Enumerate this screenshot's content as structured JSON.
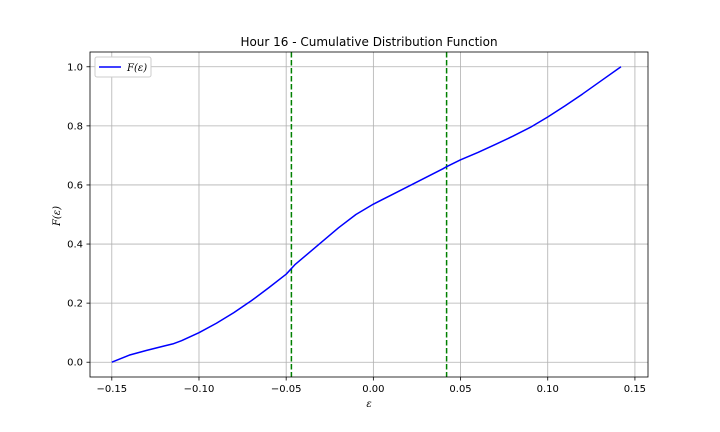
{
  "chart_data": {
    "type": "line",
    "title": "Hour 16 - Cumulative Distribution Function",
    "xlabel": "ε",
    "ylabel": "F(ε)",
    "xlim": [
      -0.1625,
      0.1575
    ],
    "ylim": [
      -0.05,
      1.05
    ],
    "xticks": [
      -0.15,
      -0.1,
      -0.05,
      0.0,
      0.05,
      0.1,
      0.15
    ],
    "xtick_labels": [
      "−0.15",
      "−0.10",
      "−0.05",
      "0.00",
      "0.05",
      "0.10",
      "0.15"
    ],
    "yticks": [
      0.0,
      0.2,
      0.4,
      0.6,
      0.8,
      1.0
    ],
    "ytick_labels": [
      "0.0",
      "0.2",
      "0.4",
      "0.6",
      "0.8",
      "1.0"
    ],
    "grid": true,
    "legend_position": "top-left",
    "series": [
      {
        "name": "F(ε)",
        "color": "#0000ff",
        "x": [
          -0.15,
          -0.145,
          -0.14,
          -0.13,
          -0.12,
          -0.115,
          -0.11,
          -0.1,
          -0.09,
          -0.08,
          -0.07,
          -0.06,
          -0.05,
          -0.045,
          -0.04,
          -0.03,
          -0.02,
          -0.01,
          0.0,
          0.01,
          0.02,
          0.03,
          0.04,
          0.042,
          0.05,
          0.06,
          0.07,
          0.08,
          0.09,
          0.1,
          0.11,
          0.12,
          0.13,
          0.142
        ],
        "values": [
          0.0,
          0.012,
          0.024,
          0.04,
          0.055,
          0.062,
          0.073,
          0.1,
          0.132,
          0.168,
          0.208,
          0.252,
          0.298,
          0.33,
          0.355,
          0.405,
          0.455,
          0.5,
          0.535,
          0.565,
          0.595,
          0.625,
          0.655,
          0.662,
          0.685,
          0.71,
          0.737,
          0.765,
          0.795,
          0.83,
          0.868,
          0.908,
          0.95,
          1.0
        ]
      }
    ],
    "vlines": [
      {
        "x": -0.047,
        "color": "#008000",
        "style": "dashed"
      },
      {
        "x": 0.042,
        "color": "#008000",
        "style": "dashed"
      }
    ]
  }
}
